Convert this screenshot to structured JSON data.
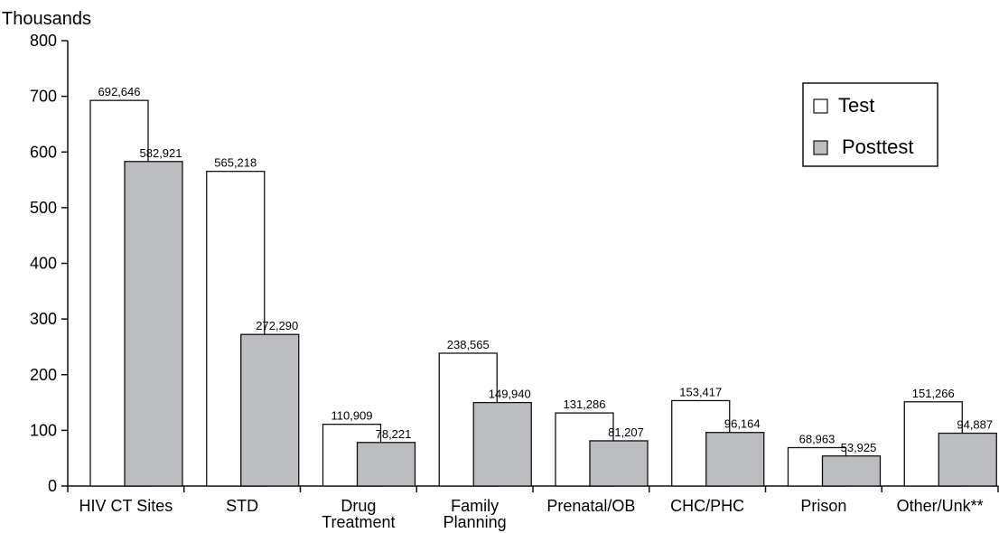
{
  "chart_data": {
    "type": "bar",
    "ylabel": "Thousands",
    "ylim": [
      0,
      800
    ],
    "yticks": [
      0,
      100,
      200,
      300,
      400,
      500,
      600,
      700,
      800
    ],
    "categories": [
      [
        "HIV CT Sites"
      ],
      [
        "STD"
      ],
      [
        "Drug",
        "Treatment"
      ],
      [
        "Family",
        "Planning"
      ],
      [
        "Prenatal/OB"
      ],
      [
        "CHC/PHC"
      ],
      [
        "Prison"
      ],
      [
        "Other/Unk**"
      ]
    ],
    "series": [
      {
        "name": "Test",
        "fill": "#ffffff",
        "values": [
          692.646,
          565.218,
          110.909,
          238.565,
          131.286,
          153.417,
          68.963,
          151.266
        ],
        "labels": [
          "692,646",
          "565,218",
          "110,909",
          "238,565",
          "131,286",
          "153,417",
          "68,963",
          "151,266"
        ]
      },
      {
        "name": "Posttest",
        "fill": "#bcbdc0",
        "values": [
          582.921,
          272.29,
          78.221,
          149.94,
          81.207,
          96.164,
          53.925,
          94.887
        ],
        "labels": [
          "582,921",
          "272,290",
          "78,221",
          "149,940",
          "81,207",
          "96,164",
          "53,925",
          "94,887"
        ]
      }
    ],
    "legend_position": "top-right",
    "grid": false
  }
}
